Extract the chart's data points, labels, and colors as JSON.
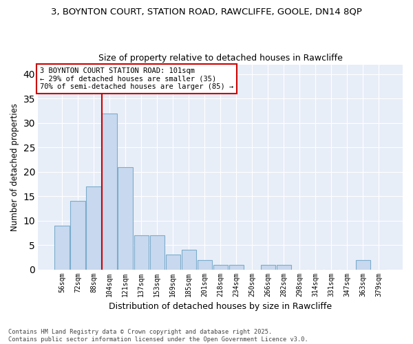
{
  "title1": "3, BOYNTON COURT, STATION ROAD, RAWCLIFFE, GOOLE, DN14 8QP",
  "title2": "Size of property relative to detached houses in Rawcliffe",
  "xlabel": "Distribution of detached houses by size in Rawcliffe",
  "ylabel": "Number of detached properties",
  "bar_labels": [
    "56sqm",
    "72sqm",
    "88sqm",
    "104sqm",
    "121sqm",
    "137sqm",
    "153sqm",
    "169sqm",
    "185sqm",
    "201sqm",
    "218sqm",
    "234sqm",
    "250sqm",
    "266sqm",
    "282sqm",
    "298sqm",
    "314sqm",
    "331sqm",
    "347sqm",
    "363sqm",
    "379sqm"
  ],
  "bar_values": [
    9,
    14,
    17,
    32,
    21,
    7,
    7,
    3,
    4,
    2,
    1,
    1,
    0,
    1,
    1,
    0,
    0,
    0,
    0,
    2,
    0
  ],
  "bar_color": "#c8d8ee",
  "bar_edge_color": "#7aaccc",
  "bg_color": "#ffffff",
  "plot_bg_color": "#e8eef8",
  "grid_color": "#ffffff",
  "vline_x": 3,
  "vline_color": "#cc0000",
  "annotation_text": "3 BOYNTON COURT STATION ROAD: 101sqm\n← 29% of detached houses are smaller (35)\n70% of semi-detached houses are larger (85) →",
  "annotation_box_color": "#ffffff",
  "annotation_box_edge": "#cc0000",
  "footer_text": "Contains HM Land Registry data © Crown copyright and database right 2025.\nContains public sector information licensed under the Open Government Licence v3.0.",
  "ylim": [
    0,
    42
  ],
  "yticks": [
    0,
    5,
    10,
    15,
    20,
    25,
    30,
    35,
    40
  ]
}
